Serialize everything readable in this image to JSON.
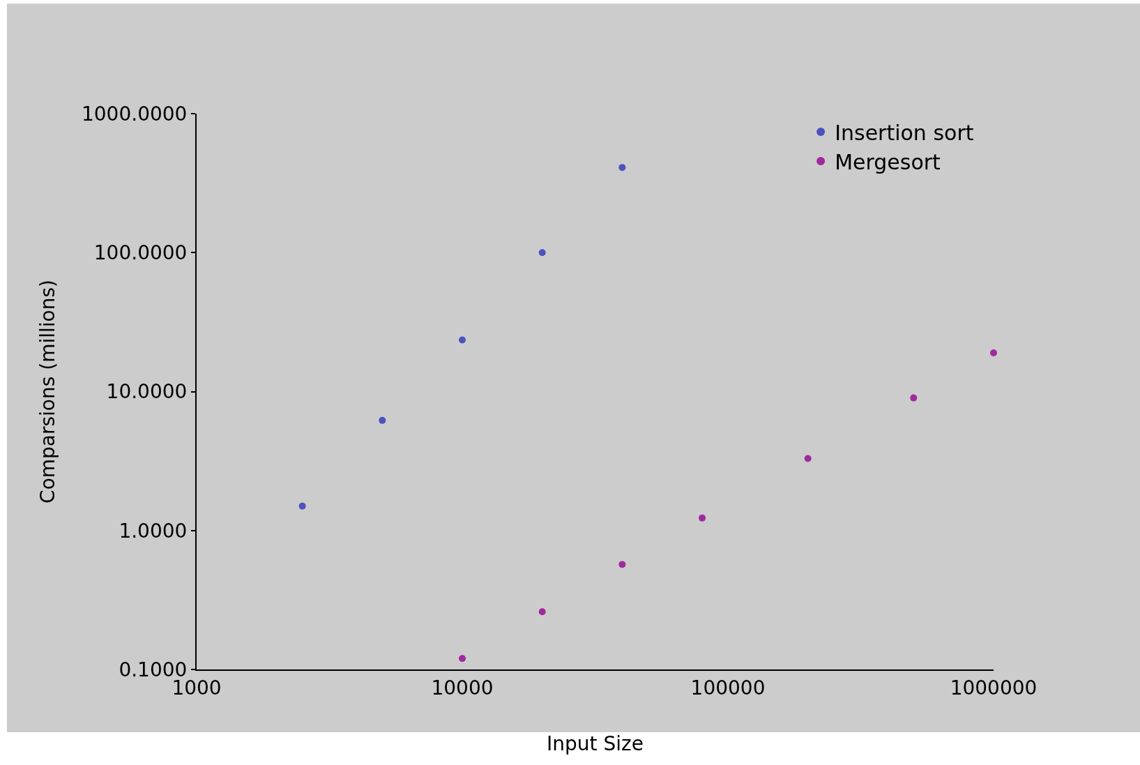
{
  "chart_data": {
    "type": "scatter",
    "xlabel": "Input Size",
    "ylabel": "Comparsions (millions)",
    "log": "xy",
    "xlim": [
      1000,
      1000000
    ],
    "ylim": [
      0.1,
      1000
    ],
    "xticks": [
      1000,
      10000,
      100000,
      1000000
    ],
    "yticks": [
      {
        "value": 0.1,
        "label": "0.1000"
      },
      {
        "value": 1,
        "label": "1.0000"
      },
      {
        "value": 10,
        "label": "10.0000"
      },
      {
        "value": 100,
        "label": "100.0000"
      },
      {
        "value": 1000,
        "label": "1000.0000"
      }
    ],
    "grid": false,
    "legend": "top right",
    "marker": "circle",
    "series": [
      {
        "name": "Insertion sort",
        "color": "#4b53bd",
        "x": [
          2500,
          5000,
          10000,
          20000,
          40000
        ],
        "values": [
          1.5,
          6.2,
          23.5,
          100,
          410
        ]
      },
      {
        "name": "Mergesort",
        "color": "#a0299e",
        "x": [
          10000,
          20000,
          40000,
          80000,
          200000,
          500000,
          1000000
        ],
        "values": [
          0.12,
          0.26,
          0.57,
          1.23,
          3.3,
          9,
          19
        ]
      }
    ]
  }
}
